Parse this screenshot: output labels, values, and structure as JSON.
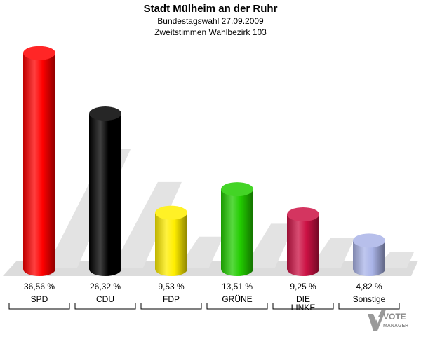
{
  "header": {
    "title": "Stadt Mülheim an der Ruhr",
    "subtitle1": "Bundestagswahl 27.09.2009",
    "subtitle2": "Zweitstimmen Wahlbezirk 103"
  },
  "logo": {
    "line1": "VOTE",
    "line2": "MANAGER"
  },
  "chart_data": {
    "type": "bar",
    "categories": [
      "SPD",
      "CDU",
      "FDP",
      "GRÜNE",
      "DIE LINKE",
      "Sonstige"
    ],
    "values": [
      36.56,
      26.32,
      9.53,
      13.51,
      9.25,
      4.82
    ],
    "value_labels": [
      "36,56 %",
      "26,32 %",
      "9,53 %",
      "13,51 %",
      "9,25 %",
      "4,82 %"
    ],
    "category_lines": [
      [
        "SPD"
      ],
      [
        "CDU"
      ],
      [
        "FDP"
      ],
      [
        "GRÜNE"
      ],
      [
        "DIE",
        "LINKE"
      ],
      [
        "Sonstige"
      ]
    ],
    "colors": [
      "#ff0000",
      "#000000",
      "#ffee00",
      "#22cc00",
      "#cc1144",
      "#aab4e8"
    ],
    "ylim": [
      0,
      37
    ],
    "grid": false,
    "legend": "none"
  }
}
